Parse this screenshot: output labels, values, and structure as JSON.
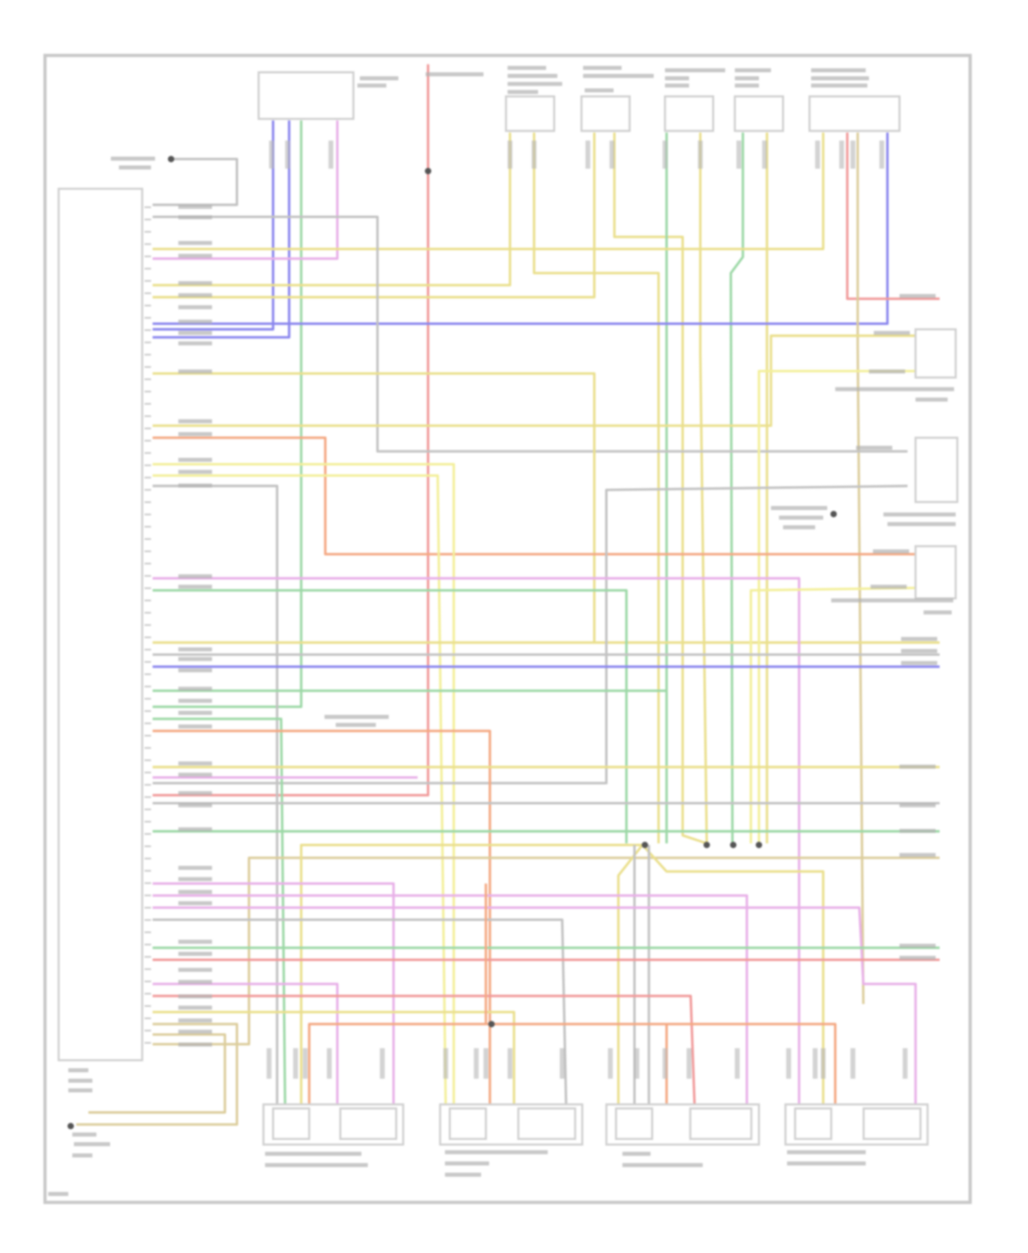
{
  "diagram": {
    "type": "wiring-diagram",
    "frame_color": "#c8c8c8",
    "component_outline_color": "#cfcfcf",
    "label_color": "#b0b0b0",
    "splice_color": "#555555",
    "wire_colors": {
      "yellow": "#eadf8c",
      "light_yellow": "#f3ef9a",
      "blue": "#8a86ee",
      "green": "#9cd8a6",
      "red": "#f19a9a",
      "orange": "#f4a882",
      "pink": "#e8b0e8",
      "gray": "#c2c2c2",
      "tan": "#dccd9c"
    },
    "icons": [
      "ecm-module",
      "sensor-box",
      "thermistor-symbol",
      "splice-dot",
      "ground-symbol"
    ]
  }
}
